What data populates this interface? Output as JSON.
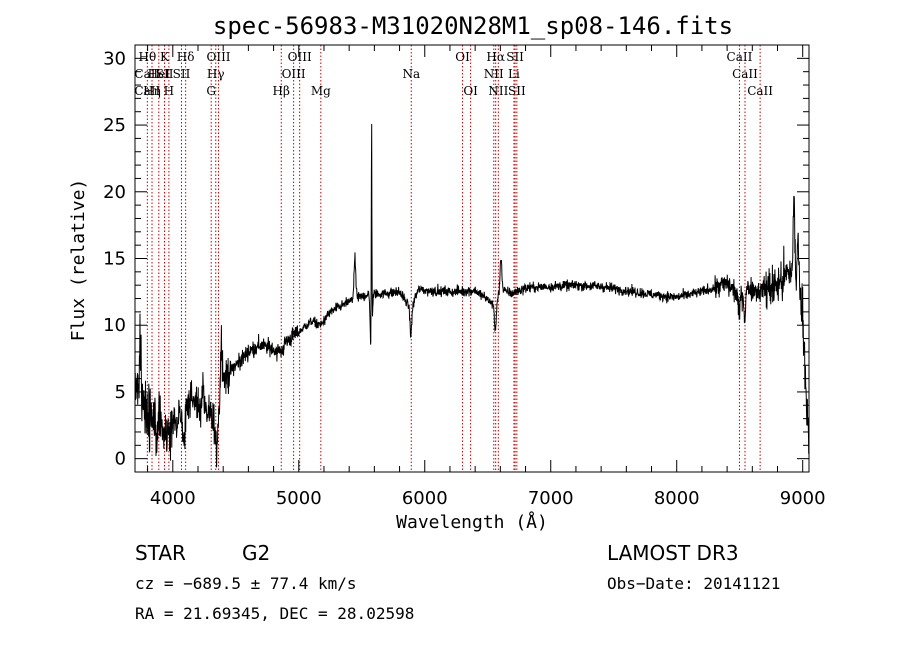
{
  "chart_data": {
    "type": "line",
    "title": "spec-56983-M31020N28M1_sp08-146.fits",
    "xlabel": "Wavelength (Å)",
    "ylabel": "Flux (relative)",
    "xlim": [
      3700,
      9050
    ],
    "ylim": [
      -1,
      31
    ],
    "xticks": [
      4000,
      5000,
      6000,
      7000,
      8000,
      9000
    ],
    "yticks": [
      0,
      5,
      10,
      15,
      20,
      25,
      30
    ],
    "line_color": "#cc0000",
    "lines": [
      {
        "label": "Hθ",
        "wl": 3798,
        "row": 0
      },
      {
        "label": "CaII",
        "wl": 3798,
        "row": 1
      },
      {
        "label": "CaII",
        "wl": 3798,
        "row": 2
      },
      {
        "label": "Hη",
        "wl": 3835,
        "row": 2
      },
      {
        "label": "HeI",
        "wl": 3889,
        "row": 1
      },
      {
        "label": "K",
        "wl": 3934,
        "row": 0
      },
      {
        "label": "SII",
        "wl": 3935,
        "row": 1
      },
      {
        "label": "H",
        "wl": 3969,
        "row": 2
      },
      {
        "label": "Hδ",
        "wl": 4102,
        "row": 0
      },
      {
        "label": "SII",
        "wl": 4069,
        "row": 1
      },
      {
        "label": "OIII",
        "wl": 4363,
        "row": 0
      },
      {
        "label": "Hγ",
        "wl": 4341,
        "row": 1
      },
      {
        "label": "G",
        "wl": 4305,
        "row": 2
      },
      {
        "label": "Hβ",
        "wl": 4861,
        "row": 2
      },
      {
        "label": "OIII",
        "wl": 5007,
        "row": 0
      },
      {
        "label": "OIII",
        "wl": 4959,
        "row": 1
      },
      {
        "label": "Mg",
        "wl": 5175,
        "row": 2
      },
      {
        "label": "Na",
        "wl": 5893,
        "row": 1
      },
      {
        "label": "OI",
        "wl": 6300,
        "row": 0
      },
      {
        "label": "OI",
        "wl": 6364,
        "row": 2
      },
      {
        "label": "Hα",
        "wl": 6563,
        "row": 0
      },
      {
        "label": "NII",
        "wl": 6548,
        "row": 1
      },
      {
        "label": "NII",
        "wl": 6584,
        "row": 2
      },
      {
        "label": "SII",
        "wl": 6717,
        "row": 0
      },
      {
        "label": "Li",
        "wl": 6708,
        "row": 1
      },
      {
        "label": "SII",
        "wl": 6731,
        "row": 2
      },
      {
        "label": "CaII",
        "wl": 8498,
        "row": 0
      },
      {
        "label": "CaII",
        "wl": 8542,
        "row": 1
      },
      {
        "label": "CaII",
        "wl": 8662,
        "row": 2
      }
    ],
    "anchors": [
      [
        3700,
        5.5
      ],
      [
        3760,
        4.5
      ],
      [
        3800,
        3.0
      ],
      [
        3850,
        3.0
      ],
      [
        3900,
        3.5
      ],
      [
        3950,
        2.0
      ],
      [
        4000,
        2.5
      ],
      [
        4050,
        3.0
      ],
      [
        4100,
        3.5
      ],
      [
        4150,
        4.5
      ],
      [
        4200,
        4.0
      ],
      [
        4250,
        3.5
      ],
      [
        4300,
        3.0
      ],
      [
        4350,
        2.5
      ],
      [
        4400,
        6.0
      ],
      [
        4450,
        6.5
      ],
      [
        4500,
        7.0
      ],
      [
        4550,
        7.5
      ],
      [
        4600,
        8.0
      ],
      [
        4700,
        8.5
      ],
      [
        4800,
        8.2
      ],
      [
        4860,
        8.0
      ],
      [
        4900,
        8.8
      ],
      [
        5000,
        9.5
      ],
      [
        5100,
        10.3
      ],
      [
        5175,
        10.0
      ],
      [
        5250,
        11.0
      ],
      [
        5350,
        11.5
      ],
      [
        5450,
        12.0
      ],
      [
        5550,
        12.3
      ],
      [
        5700,
        12.4
      ],
      [
        5800,
        12.5
      ],
      [
        5890,
        11.2
      ],
      [
        5950,
        12.7
      ],
      [
        6000,
        12.6
      ],
      [
        6200,
        12.5
      ],
      [
        6400,
        12.6
      ],
      [
        6560,
        11.5
      ],
      [
        6600,
        12.6
      ],
      [
        6700,
        12.4
      ],
      [
        6800,
        12.8
      ],
      [
        7000,
        12.9
      ],
      [
        7200,
        13.0
      ],
      [
        7400,
        12.9
      ],
      [
        7600,
        12.6
      ],
      [
        7800,
        12.3
      ],
      [
        8000,
        12.1
      ],
      [
        8200,
        12.5
      ],
      [
        8400,
        13.1
      ],
      [
        8500,
        12.2
      ],
      [
        8550,
        12.8
      ],
      [
        8660,
        12.6
      ],
      [
        8800,
        13.0
      ],
      [
        8900,
        14.0
      ],
      [
        8950,
        13.0
      ],
      [
        9000,
        11.0
      ],
      [
        9050,
        0.5
      ]
    ],
    "features": [
      {
        "wl": 3740,
        "dy": 5.0
      },
      {
        "wl": 3875,
        "dy": -3.0
      },
      {
        "wl": 4090,
        "dy": -2.5
      },
      {
        "wl": 4240,
        "dy": 1.8
      },
      {
        "wl": 4345,
        "dy": -2.0
      },
      {
        "wl": 4386,
        "dy": 4.0
      },
      {
        "wl": 5445,
        "dy": 3.0
      },
      {
        "wl": 5575,
        "dy": -5.0
      },
      {
        "wl": 5578,
        "dy": 17.5
      },
      {
        "wl": 5890,
        "dy": -2.0
      },
      {
        "wl": 6560,
        "dy": -2.0
      },
      {
        "wl": 6605,
        "dy": 2.5
      },
      {
        "wl": 8495,
        "dy": -1.5
      },
      {
        "wl": 8540,
        "dy": -2.0
      },
      {
        "wl": 8930,
        "dy": 5.5
      },
      {
        "wl": 8965,
        "dy": 4.5
      }
    ]
  },
  "info": {
    "class": "STAR",
    "subclass": "G2",
    "survey": "LAMOST DR3",
    "cz": "cz = −689.5 ± 77.4 km/s",
    "obsdate": "Obs−Date: 20141121",
    "radec": "RA =  21.69345, DEC =  28.02598"
  }
}
